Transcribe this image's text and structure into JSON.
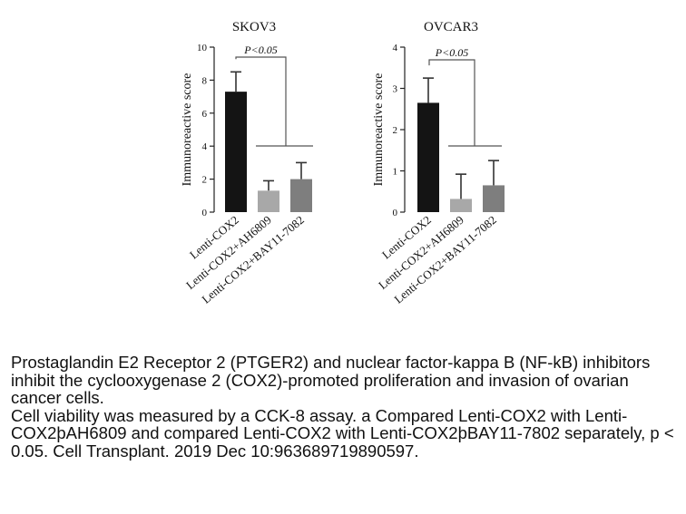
{
  "chart_data": [
    {
      "type": "bar",
      "title": "SKOV3",
      "ylabel": "Immunoreactive score",
      "categories": [
        "Lenti-COX2",
        "Lenti-COX2+AH6809",
        "Lenti-COX2+BAY11-7082"
      ],
      "values": [
        7.3,
        1.3,
        2.0
      ],
      "errors": [
        1.2,
        0.6,
        1.0
      ],
      "colors": [
        "#141414",
        "#a8a8a8",
        "#7e7e7e"
      ],
      "ylim": [
        0,
        10
      ],
      "yticks": [
        0,
        2,
        4,
        6,
        8,
        10
      ],
      "annotation": "P<0.05"
    },
    {
      "type": "bar",
      "title": "OVCAR3",
      "ylabel": "Immunoreactive score",
      "categories": [
        "Lenti-COX2",
        "Lenti-COX2+AH6809",
        "Lenti-COX2+BAY11-7082"
      ],
      "values": [
        2.65,
        0.32,
        0.65
      ],
      "errors": [
        0.6,
        0.6,
        0.6
      ],
      "colors": [
        "#141414",
        "#a8a8a8",
        "#7e7e7e"
      ],
      "ylim": [
        0,
        4
      ],
      "yticks": [
        0,
        1,
        2,
        3,
        4
      ],
      "annotation": "P<0.05"
    }
  ],
  "caption": {
    "title": "Prostaglandin E2 Receptor 2 (PTGER2) and nuclear factor-kappa B (NF-kB) inhibitors inhibit the cyclooxygenase 2 (COX2)-promoted proliferation and invasion of ovarian cancer cells.",
    "body": "Cell viability was measured by a CCK-8 assay. a Compared Lenti-COX2 with Lenti-COX2þAH6809 and compared Lenti-COX2 with Lenti-COX2þBAY11-7802 separately, p < 0.05. Cell Transplant. 2019 Dec 10:963689719890597."
  }
}
